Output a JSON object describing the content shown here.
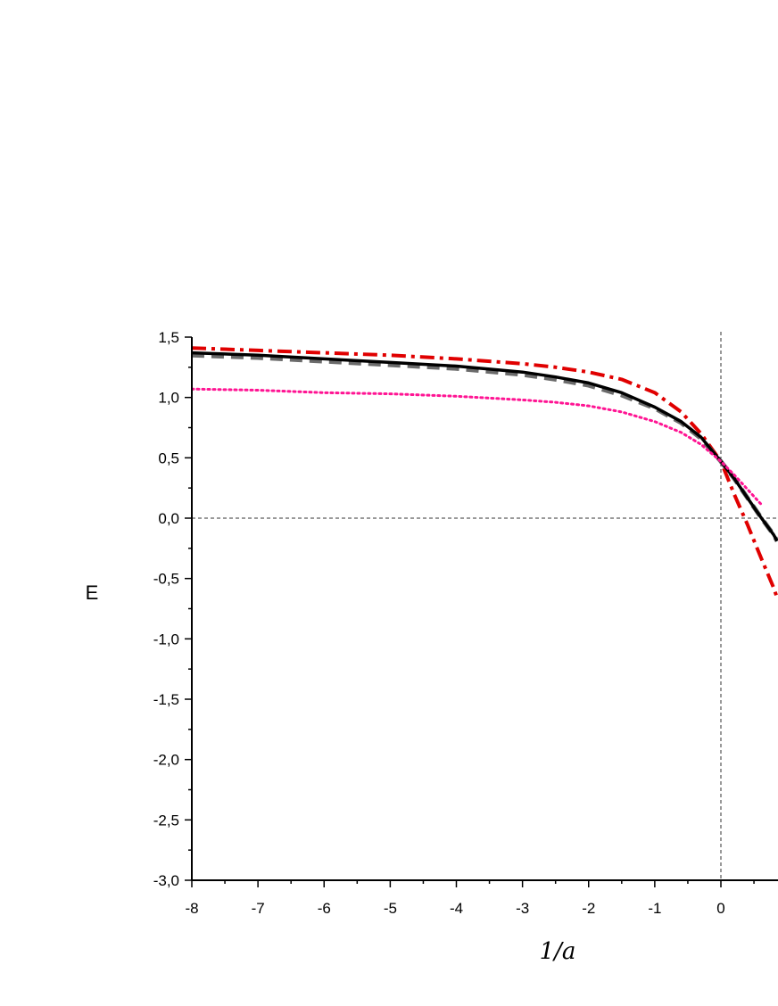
{
  "chart_data": {
    "type": "line",
    "xlabel": "1/a",
    "ylabel": "E",
    "xlim": [
      -8,
      0.85
    ],
    "ylim": [
      -3.0,
      1.5
    ],
    "x_ticks": [
      "-8",
      "-7",
      "-6",
      "-5",
      "-4",
      "-3",
      "-2",
      "-1",
      "0"
    ],
    "y_ticks": [
      "1,5",
      "1,0",
      "0,5",
      "0,0",
      "-0,5",
      "-1,0",
      "-1,5",
      "-2,0",
      "-2,5",
      "-3,0"
    ],
    "reference_lines": {
      "x": 0,
      "y": 0
    },
    "series": [
      {
        "style": "dash-dot",
        "color": "#e00000",
        "x": [
          -8,
          -7,
          -6,
          -5,
          -4,
          -3,
          -2.5,
          -2,
          -1.5,
          -1,
          -0.6,
          -0.3,
          0,
          0.2,
          0.4,
          0.6,
          0.8,
          0.85
        ],
        "y": [
          1.41,
          1.39,
          1.37,
          1.35,
          1.32,
          1.28,
          1.25,
          1.21,
          1.15,
          1.04,
          0.88,
          0.7,
          0.47,
          0.2,
          -0.05,
          -0.32,
          -0.58,
          -0.66
        ]
      },
      {
        "style": "dashed",
        "color": "#6b6b6b",
        "x": [
          -8,
          -7,
          -6,
          -5,
          -4,
          -3,
          -2.5,
          -2,
          -1.5,
          -1,
          -0.6,
          -0.3,
          0,
          0.2,
          0.4,
          0.6,
          0.8,
          0.85
        ],
        "y": [
          1.35,
          1.33,
          1.3,
          1.27,
          1.24,
          1.19,
          1.15,
          1.1,
          1.02,
          0.91,
          0.79,
          0.66,
          0.47,
          0.33,
          0.17,
          0.01,
          -0.14,
          -0.19
        ]
      },
      {
        "style": "solid",
        "color": "#000000",
        "x": [
          -8,
          -7,
          -6,
          -5,
          -4,
          -3,
          -2.5,
          -2,
          -1.5,
          -1,
          -0.6,
          -0.3,
          0,
          0.2,
          0.4,
          0.6,
          0.8,
          0.85
        ],
        "y": [
          1.37,
          1.35,
          1.32,
          1.29,
          1.26,
          1.21,
          1.17,
          1.12,
          1.04,
          0.92,
          0.8,
          0.67,
          0.47,
          0.33,
          0.17,
          0.01,
          -0.14,
          -0.19
        ]
      },
      {
        "style": "dotted",
        "color": "#ff1493",
        "x": [
          -8,
          -7,
          -6,
          -5,
          -4,
          -3,
          -2.5,
          -2,
          -1.5,
          -1,
          -0.6,
          -0.3,
          0,
          0.2,
          0.4,
          0.6
        ],
        "y": [
          1.07,
          1.06,
          1.04,
          1.03,
          1.01,
          0.98,
          0.96,
          0.93,
          0.88,
          0.8,
          0.71,
          0.61,
          0.47,
          0.36,
          0.24,
          0.12
        ]
      }
    ]
  }
}
